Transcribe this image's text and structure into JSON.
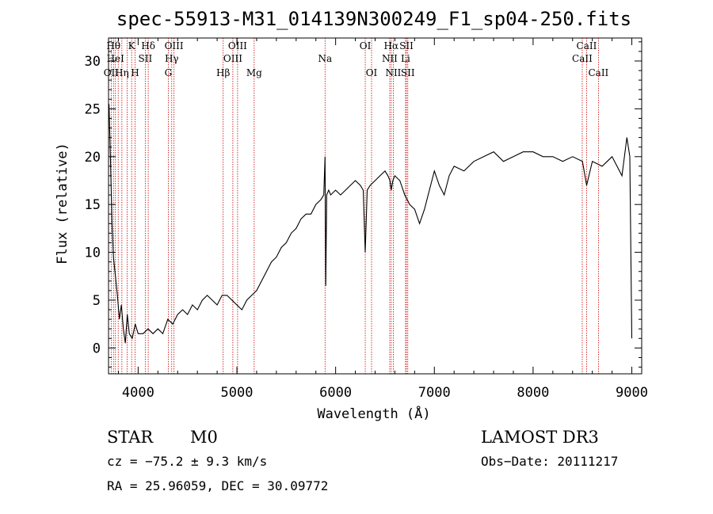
{
  "chart_data": {
    "type": "line",
    "title": "spec-55913-M31_014139N300249_F1_sp04-250.fits",
    "xlabel": "Wavelength (Å)",
    "ylabel": "Flux (relative)",
    "xlim": [
      3700,
      9100
    ],
    "ylim": [
      -2.7,
      32.4
    ],
    "xticks": [
      4000,
      5000,
      6000,
      7000,
      8000,
      9000
    ],
    "yticks": [
      0,
      5,
      10,
      15,
      20,
      25,
      30
    ],
    "xtick_labels": [
      "4000",
      "5000",
      "6000",
      "7000",
      "8000",
      "9000"
    ],
    "ytick_labels": [
      "0",
      "5",
      "10",
      "15",
      "20",
      "25",
      "30"
    ],
    "series": [
      {
        "name": "flux",
        "x": [
          3705,
          3720,
          3735,
          3750,
          3770,
          3790,
          3810,
          3830,
          3850,
          3870,
          3890,
          3910,
          3940,
          3970,
          4000,
          4050,
          4100,
          4150,
          4200,
          4250,
          4300,
          4350,
          4400,
          4450,
          4500,
          4550,
          4600,
          4650,
          4700,
          4750,
          4800,
          4850,
          4900,
          4950,
          5000,
          5050,
          5100,
          5150,
          5200,
          5250,
          5300,
          5350,
          5400,
          5450,
          5500,
          5550,
          5600,
          5650,
          5700,
          5750,
          5800,
          5850,
          5880,
          5893,
          5900,
          5910,
          5930,
          5950,
          6000,
          6050,
          6100,
          6150,
          6200,
          6250,
          6280,
          6300,
          6320,
          6350,
          6400,
          6450,
          6500,
          6530,
          6550,
          6563,
          6580,
          6600,
          6650,
          6700,
          6750,
          6800,
          6850,
          6900,
          6950,
          7000,
          7050,
          7100,
          7150,
          7200,
          7300,
          7400,
          7500,
          7600,
          7700,
          7800,
          7900,
          8000,
          8100,
          8200,
          8300,
          8400,
          8500,
          8542,
          8600,
          8700,
          8800,
          8900,
          8950,
          8980,
          9000
        ],
        "y": [
          25.5,
          19.5,
          13.0,
          9.5,
          7.5,
          5.5,
          3.0,
          4.5,
          2.0,
          0.5,
          3.5,
          1.5,
          1.0,
          2.5,
          1.5,
          1.5,
          2.0,
          1.5,
          2.0,
          1.5,
          3.0,
          2.5,
          3.5,
          4.0,
          3.5,
          4.5,
          4.0,
          5.0,
          5.5,
          5.0,
          4.5,
          5.5,
          5.5,
          5.0,
          4.5,
          4.0,
          5.0,
          5.5,
          6.0,
          7.0,
          8.0,
          9.0,
          9.5,
          10.5,
          11.0,
          12.0,
          12.5,
          13.5,
          14.0,
          14.0,
          15.0,
          15.5,
          16.0,
          20.0,
          6.5,
          16.0,
          16.5,
          16.0,
          16.5,
          16.0,
          16.5,
          17.0,
          17.5,
          17.0,
          16.5,
          10.0,
          16.5,
          17.0,
          17.5,
          18.0,
          18.5,
          18.0,
          17.5,
          16.5,
          17.5,
          18.0,
          17.5,
          16.0,
          15.0,
          14.5,
          13.0,
          14.5,
          16.5,
          18.5,
          17.0,
          16.0,
          18.0,
          19.0,
          18.5,
          19.5,
          20.0,
          20.5,
          19.5,
          20.0,
          20.5,
          20.5,
          20.0,
          20.0,
          19.5,
          20.0,
          19.5,
          17.0,
          19.5,
          19.0,
          20.0,
          18.0,
          22.0,
          20.0,
          1.0
        ]
      }
    ],
    "line_labels": [
      {
        "text": "OII",
        "wavelength": 3727,
        "row": 3
      },
      {
        "text": "Hθ",
        "wavelength": 3750,
        "row": 1
      },
      {
        "text": "HeI",
        "wavelength": 3770,
        "row": 2
      },
      {
        "text": "Hη",
        "wavelength": 3835,
        "row": 3
      },
      {
        "text": "K",
        "wavelength": 3934,
        "row": 1
      },
      {
        "text": "SII",
        "wavelength": 4072,
        "row": 2
      },
      {
        "text": "H",
        "wavelength": 3969,
        "row": 3
      },
      {
        "text": "Hδ",
        "wavelength": 4102,
        "row": 1
      },
      {
        "text": "OIII",
        "wavelength": 4363,
        "row": 1
      },
      {
        "text": "Hγ",
        "wavelength": 4340,
        "row": 2
      },
      {
        "text": "G",
        "wavelength": 4305,
        "row": 3
      },
      {
        "text": "Hβ",
        "wavelength": 4861,
        "row": 3
      },
      {
        "text": "OIII",
        "wavelength": 5007,
        "row": 1
      },
      {
        "text": "OIII",
        "wavelength": 4959,
        "row": 2
      },
      {
        "text": "Mg",
        "wavelength": 5175,
        "row": 3
      },
      {
        "text": "Na",
        "wavelength": 5893,
        "row": 2
      },
      {
        "text": "OI",
        "wavelength": 6300,
        "row": 1
      },
      {
        "text": "OI",
        "wavelength": 6364,
        "row": 3
      },
      {
        "text": "Hα",
        "wavelength": 6563,
        "row": 1
      },
      {
        "text": "SII",
        "wavelength": 6717,
        "row": 1
      },
      {
        "text": "NII",
        "wavelength": 6548,
        "row": 2
      },
      {
        "text": "Li",
        "wavelength": 6708,
        "row": 2
      },
      {
        "text": "NII",
        "wavelength": 6584,
        "row": 3
      },
      {
        "text": "SII",
        "wavelength": 6731,
        "row": 3
      },
      {
        "text": "CaII",
        "wavelength": 8542,
        "row": 1
      },
      {
        "text": "CaII",
        "wavelength": 8498,
        "row": 2
      },
      {
        "text": "CaII",
        "wavelength": 8662,
        "row": 3
      }
    ],
    "marker_lines": [
      3727,
      3750,
      3770,
      3798,
      3835,
      3889,
      3934,
      3969,
      4072,
      4102,
      4305,
      4340,
      4363,
      4861,
      4959,
      5007,
      5175,
      5893,
      6300,
      6364,
      6548,
      6563,
      6584,
      6708,
      6717,
      6731,
      8498,
      8542,
      8662
    ],
    "marker_color": "#cc0000"
  },
  "info": {
    "object_class": "STAR",
    "subclass": "M0",
    "cz": "cz = −75.2 ± 9.3 km/s",
    "coords": "RA =  25.96059, DEC =  30.09772",
    "survey": "LAMOST DR3",
    "obs_date": "Obs−Date: 20111217"
  }
}
